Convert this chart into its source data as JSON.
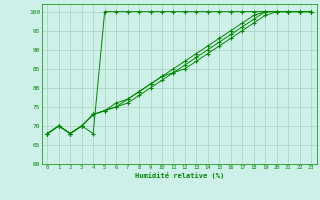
{
  "bg_color": "#cdf0e8",
  "grid_color": "#aacfbf",
  "line_color": "#008800",
  "marker_color": "#008800",
  "xlabel": "Humidité relative (%)",
  "xlabel_color": "#008800",
  "tick_color": "#008800",
  "xlim": [
    -0.5,
    23.5
  ],
  "ylim": [
    60,
    102
  ],
  "yticks": [
    60,
    65,
    70,
    75,
    80,
    85,
    90,
    95,
    100
  ],
  "xticks": [
    0,
    1,
    2,
    3,
    4,
    5,
    6,
    7,
    8,
    9,
    10,
    11,
    12,
    13,
    14,
    15,
    16,
    17,
    18,
    19,
    20,
    21,
    22,
    23
  ],
  "series": [
    [
      68,
      70,
      68,
      70,
      68,
      100,
      100,
      100,
      100,
      100,
      100,
      100,
      100,
      100,
      100,
      100,
      100,
      100,
      100,
      100,
      100,
      100,
      100,
      100
    ],
    [
      68,
      70,
      68,
      70,
      73,
      74,
      75,
      77,
      79,
      81,
      83,
      85,
      87,
      89,
      91,
      93,
      95,
      97,
      99,
      100,
      100,
      100,
      100,
      100
    ],
    [
      68,
      70,
      68,
      70,
      73,
      74,
      76,
      77,
      79,
      81,
      83,
      84,
      86,
      88,
      90,
      92,
      94,
      96,
      98,
      100,
      100,
      100,
      100,
      100
    ],
    [
      68,
      70,
      68,
      70,
      73,
      74,
      75,
      76,
      78,
      80,
      82,
      84,
      85,
      87,
      89,
      91,
      93,
      95,
      97,
      99,
      100,
      100,
      100,
      100
    ]
  ]
}
